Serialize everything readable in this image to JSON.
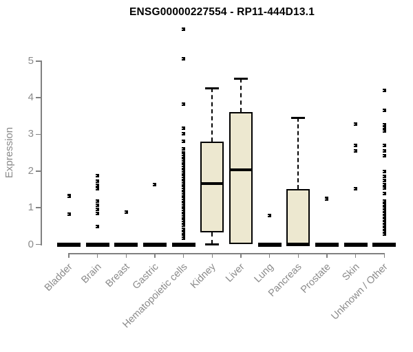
{
  "chart_data": {
    "type": "boxplot",
    "title": "ENSG00000227554 - RP11-444D13.1",
    "ylabel": "Expression",
    "xlabel": "",
    "ylim": [
      0,
      5
    ],
    "y_ticks": [
      0,
      1,
      2,
      3,
      4,
      5
    ],
    "grid": false,
    "legend": "none",
    "categories": [
      "Bladder",
      "Brain",
      "Breast",
      "Gastric",
      "Hematopoietic cells",
      "Kidney",
      "Liver",
      "Lung",
      "Pancreas",
      "Prostate",
      "Skin",
      "Unknown / Other"
    ],
    "boxes": [
      {
        "category": "Bladder",
        "q1": 0,
        "median": 0,
        "q3": 0,
        "whisker_low": 0,
        "whisker_high": 0,
        "outliers": [
          1.34,
          1.31,
          0.82
        ]
      },
      {
        "category": "Brain",
        "q1": 0,
        "median": 0,
        "q3": 0,
        "whisker_low": 0,
        "whisker_high": 0,
        "outliers": [
          1.88,
          1.73,
          1.62,
          1.51,
          1.19,
          1.07,
          0.96,
          0.84,
          0.49
        ]
      },
      {
        "category": "Breast",
        "q1": 0,
        "median": 0,
        "q3": 0,
        "whisker_low": 0,
        "whisker_high": 0,
        "outliers": [
          0.89
        ]
      },
      {
        "category": "Gastric",
        "q1": 0,
        "median": 0,
        "q3": 0,
        "whisker_low": 0,
        "whisker_high": 0,
        "outliers": [
          1.63
        ]
      },
      {
        "category": "Hematopoietic cells",
        "q1": 0,
        "median": 0,
        "q3": 0,
        "whisker_low": 0,
        "whisker_high": 0,
        "outliers": [
          5.87,
          5.07,
          3.82,
          3.16,
          3.01,
          2.82,
          2.6,
          2.5,
          2.45,
          2.4,
          2.35,
          2.3,
          2.25,
          2.2,
          2.15,
          2.1,
          2.05,
          2.0,
          1.95,
          1.9,
          1.85,
          1.8,
          1.75,
          1.7,
          1.65,
          1.6,
          1.55,
          1.5,
          1.45,
          1.4,
          1.35,
          1.3,
          1.25,
          1.2,
          1.15,
          1.1,
          1.05,
          1.0,
          0.95,
          0.9,
          0.85,
          0.8,
          0.75,
          0.7,
          0.65,
          0.6,
          0.53,
          0.42,
          0.32,
          0.23,
          0.17
        ]
      },
      {
        "category": "Kidney",
        "q1": 0.33,
        "median": 1.66,
        "q3": 2.8,
        "whisker_low": 0,
        "whisker_high": 4.26,
        "outliers": []
      },
      {
        "category": "Liver",
        "q1": 0,
        "median": 2.03,
        "q3": 3.6,
        "whisker_low": 0,
        "whisker_high": 4.52,
        "outliers": []
      },
      {
        "category": "Lung",
        "q1": 0,
        "median": 0,
        "q3": 0,
        "whisker_low": 0,
        "whisker_high": 0,
        "outliers": [
          0.79
        ]
      },
      {
        "category": "Pancreas",
        "q1": 0,
        "median": 0,
        "q3": 1.51,
        "whisker_low": 0,
        "whisker_high": 3.45,
        "outliers": []
      },
      {
        "category": "Prostate",
        "q1": 0,
        "median": 0,
        "q3": 0,
        "whisker_low": 0,
        "whisker_high": 0,
        "outliers": [
          1.26,
          1.24
        ]
      },
      {
        "category": "Skin",
        "q1": 0,
        "median": 0,
        "q3": 0,
        "whisker_low": 0,
        "whisker_high": 0,
        "outliers": [
          3.28,
          2.69,
          2.54,
          1.51
        ]
      },
      {
        "category": "Unknown / Other",
        "q1": 0,
        "median": 0,
        "q3": 0,
        "whisker_low": 0,
        "whisker_high": 0,
        "outliers": [
          4.19,
          3.66,
          3.26,
          3.18,
          3.1,
          2.69,
          2.54,
          2.41,
          1.98,
          1.86,
          1.75,
          1.64,
          1.53,
          1.39,
          1.19,
          1.09,
          1.0,
          0.92,
          0.84,
          0.76,
          0.68,
          0.6,
          0.52,
          0.44,
          0.36,
          0.29
        ]
      }
    ],
    "colors": {
      "box_fill": "#ede8d0",
      "box_border": "#000000",
      "median": "#000000",
      "whisker": "#000000",
      "outlier": "#000000",
      "axis": "#808080",
      "tick_label": "#8a8a8a",
      "title": "#000000",
      "background": "#ffffff"
    }
  }
}
